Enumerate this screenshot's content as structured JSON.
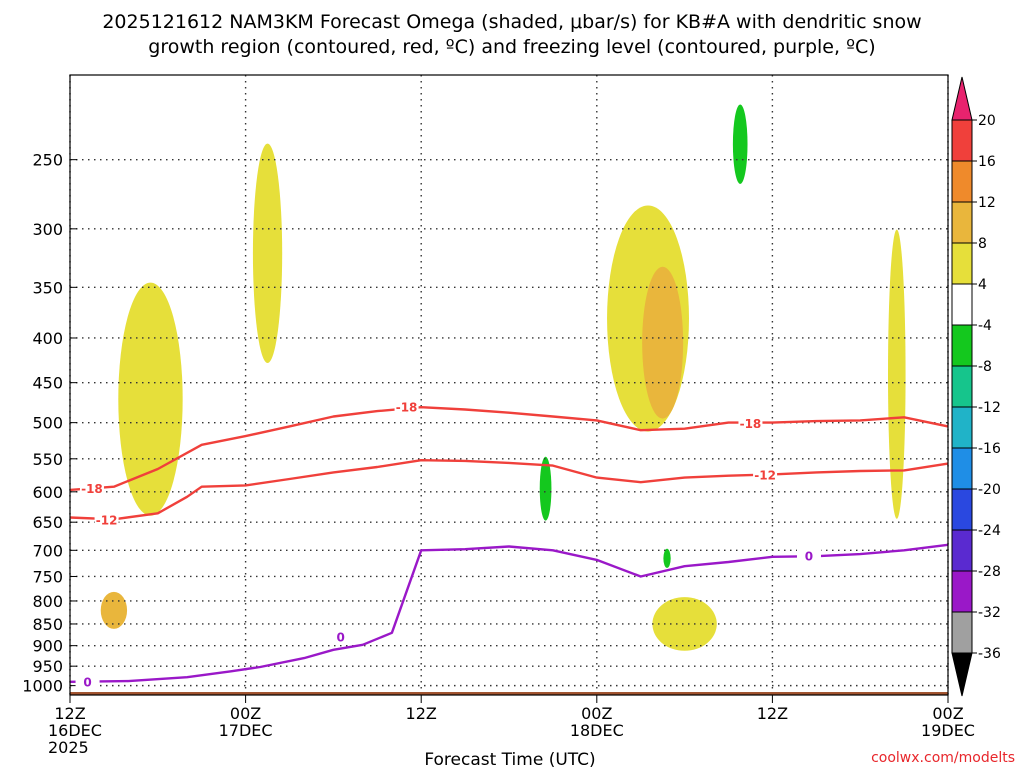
{
  "chart_data": {
    "type": "heatmap",
    "title_line1": "2025121612 NAM3KM Forecast Omega (shaded, μbar/s) for KB#A with dendritic snow",
    "title_line2": "growth region (contoured, red, ºC) and freezing level (contoured, purple, ºC)",
    "xlabel": "Forecast Time (UTC)",
    "credit": "coolwx.com/modelts",
    "x_hours_range": [
      0,
      60
    ],
    "y_pressure_range": [
      1025,
      200
    ],
    "y_ticks": [
      250,
      300,
      350,
      400,
      450,
      500,
      550,
      600,
      650,
      700,
      750,
      800,
      850,
      900,
      950,
      1000
    ],
    "x_ticks": [
      {
        "h": 0,
        "l1": "12Z",
        "l2": "16DEC",
        "l3": "2025"
      },
      {
        "h": 12,
        "l1": "00Z",
        "l2": "17DEC",
        "l3": ""
      },
      {
        "h": 24,
        "l1": "12Z",
        "l2": "",
        "l3": ""
      },
      {
        "h": 36,
        "l1": "00Z",
        "l2": "18DEC",
        "l3": ""
      },
      {
        "h": 48,
        "l1": "12Z",
        "l2": "",
        "l3": ""
      },
      {
        "h": 60,
        "l1": "00Z",
        "l2": "19DEC",
        "l3": ""
      }
    ],
    "colorbar": {
      "labels": [
        "20",
        "16",
        "12",
        "8",
        "4",
        "-4",
        "-8",
        "-12",
        "-16",
        "-20",
        "-24",
        "-28",
        "-32",
        "-36"
      ],
      "colors": [
        "#e8236e",
        "#f0403b",
        "#ef8a2b",
        "#e9b63c",
        "#e6df3a",
        "#ffffff",
        "#14c81e",
        "#16c58c",
        "#20b3c8",
        "#1f8ee6",
        "#2a48e0",
        "#5a2ad0",
        "#9a18c8",
        "#a0a0a0",
        "#000000"
      ]
    },
    "contours": [
      {
        "name": "dgz-upper",
        "label": "-18",
        "color": "#f0403b",
        "points": [
          [
            0,
            597
          ],
          [
            3,
            592
          ],
          [
            6,
            565
          ],
          [
            9,
            530
          ],
          [
            12,
            518
          ],
          [
            15,
            505
          ],
          [
            18,
            492
          ],
          [
            21,
            485
          ],
          [
            24,
            480
          ],
          [
            27,
            483
          ],
          [
            30,
            487
          ],
          [
            33,
            492
          ],
          [
            36,
            497
          ],
          [
            39,
            510
          ],
          [
            42,
            508
          ],
          [
            45,
            500
          ],
          [
            48,
            500
          ],
          [
            51,
            498
          ],
          [
            54,
            497
          ],
          [
            57,
            493
          ],
          [
            60,
            505
          ]
        ],
        "label_pos": [
          [
            1.5,
            595
          ],
          [
            23,
            480
          ],
          [
            46.5,
            501
          ]
        ]
      },
      {
        "name": "dgz-lower",
        "label": "-12",
        "color": "#f0403b",
        "points": [
          [
            0,
            642
          ],
          [
            3,
            645
          ],
          [
            6,
            635
          ],
          [
            8,
            608
          ],
          [
            9,
            592
          ],
          [
            12,
            590
          ],
          [
            15,
            580
          ],
          [
            18,
            570
          ],
          [
            21,
            562
          ],
          [
            24,
            552
          ],
          [
            27,
            553
          ],
          [
            30,
            556
          ],
          [
            33,
            560
          ],
          [
            36,
            578
          ],
          [
            39,
            585
          ],
          [
            42,
            578
          ],
          [
            45,
            575
          ],
          [
            48,
            573
          ],
          [
            51,
            570
          ],
          [
            54,
            568
          ],
          [
            57,
            567
          ],
          [
            60,
            557
          ]
        ],
        "label_pos": [
          [
            2.5,
            646
          ],
          [
            47.5,
            574
          ]
        ]
      },
      {
        "name": "freezing-level",
        "label": "0",
        "color": "#9a18c8",
        "points": [
          [
            0,
            990
          ],
          [
            4,
            988
          ],
          [
            8,
            978
          ],
          [
            11,
            963
          ],
          [
            13,
            952
          ],
          [
            16,
            930
          ],
          [
            18,
            910
          ],
          [
            20,
            898
          ],
          [
            22,
            870
          ],
          [
            24,
            700
          ],
          [
            27,
            698
          ],
          [
            30,
            693
          ],
          [
            33,
            700
          ],
          [
            36,
            718
          ],
          [
            39,
            750
          ],
          [
            42,
            730
          ],
          [
            45,
            722
          ],
          [
            48,
            712
          ],
          [
            51,
            711
          ],
          [
            54,
            707
          ],
          [
            57,
            700
          ],
          [
            60,
            690
          ]
        ],
        "label_pos": [
          [
            1.2,
            990
          ],
          [
            18.5,
            880
          ],
          [
            50.5,
            711
          ]
        ]
      }
    ],
    "omega_shaded": [
      {
        "name": "upward-area-1",
        "value": 4,
        "center": [
          5.5,
          470
        ],
        "radius": [
          2.2,
          140
        ]
      },
      {
        "name": "upward-area-2",
        "value": 4,
        "center": [
          13.5,
          320
        ],
        "radius": [
          1.0,
          90
        ]
      },
      {
        "name": "upward-area-3",
        "value": 8,
        "center": [
          3.0,
          820
        ],
        "radius": [
          0.9,
          40
        ]
      },
      {
        "name": "upward-area-4",
        "value": 4,
        "center": [
          39.5,
          380
        ],
        "radius": [
          2.8,
          110
        ]
      },
      {
        "name": "upward-area-5",
        "value": 8,
        "center": [
          40.5,
          405
        ],
        "radius": [
          1.4,
          80
        ]
      },
      {
        "name": "upward-area-6",
        "value": 4,
        "center": [
          42.0,
          850
        ],
        "radius": [
          2.2,
          60
        ]
      },
      {
        "name": "upward-area-7",
        "value": 4,
        "center": [
          56.5,
          440
        ],
        "radius": [
          0.6,
          160
        ]
      },
      {
        "name": "downward-area-1",
        "value": -8,
        "center": [
          45.8,
          240
        ],
        "radius": [
          0.5,
          25
        ]
      },
      {
        "name": "downward-area-2",
        "value": -8,
        "center": [
          32.5,
          595
        ],
        "radius": [
          0.4,
          50
        ]
      },
      {
        "name": "downward-area-3",
        "value": -8,
        "center": [
          40.8,
          715
        ],
        "radius": [
          0.25,
          18
        ]
      }
    ]
  }
}
